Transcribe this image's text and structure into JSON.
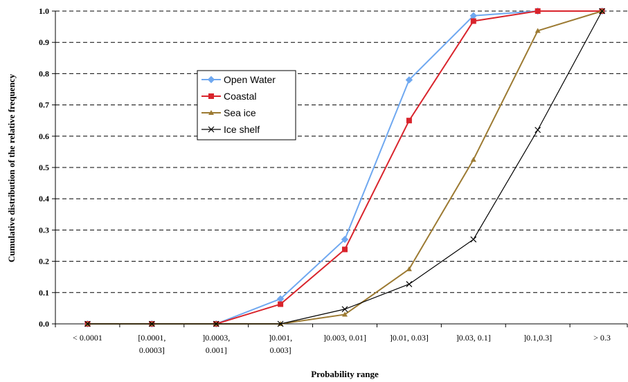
{
  "chart_data": {
    "type": "line",
    "xlabel": "Probability range",
    "ylabel": "Cumulative distribution of the relative frequency",
    "ylim": [
      0,
      1
    ],
    "yticks": [
      "0.0",
      "0.1",
      "0.2",
      "0.3",
      "0.4",
      "0.5",
      "0.6",
      "0.7",
      "0.8",
      "0.9",
      "1.0"
    ],
    "grid": "horizontal dashed",
    "legend_position": "upper-left inside plot",
    "categories": [
      [
        "< 0.0001"
      ],
      [
        "[0.0001,",
        "0.0003]"
      ],
      [
        "]0.0003,",
        "0.001]"
      ],
      [
        "]0.001,",
        "0.003]"
      ],
      [
        "]0.003, 0.01]"
      ],
      [
        "]0.01, 0.03]"
      ],
      [
        "]0.03, 0.1]"
      ],
      [
        "]0.1,0.3]"
      ],
      [
        "> 0.3"
      ]
    ],
    "series": [
      {
        "name": "Open Water",
        "color": "#6fa8f0",
        "marker": "diamond",
        "values": [
          0.0,
          0.0,
          0.0,
          0.08,
          0.27,
          0.78,
          0.985,
          1.0,
          1.0
        ]
      },
      {
        "name": "Coastal",
        "color": "#d9242c",
        "marker": "square",
        "values": [
          0.0,
          0.0,
          0.0,
          0.063,
          0.238,
          0.65,
          0.968,
          1.0,
          1.0
        ]
      },
      {
        "name": "Sea ice",
        "color": "#9c7a32",
        "marker": "triangle",
        "values": [
          0.0,
          0.0,
          0.0,
          0.0,
          0.03,
          0.175,
          0.525,
          0.937,
          1.0
        ]
      },
      {
        "name": "Ice shelf",
        "color": "#000000",
        "marker": "x",
        "values": [
          0.0,
          0.0,
          0.0,
          0.0,
          0.047,
          0.127,
          0.27,
          0.62,
          1.0
        ]
      }
    ]
  }
}
